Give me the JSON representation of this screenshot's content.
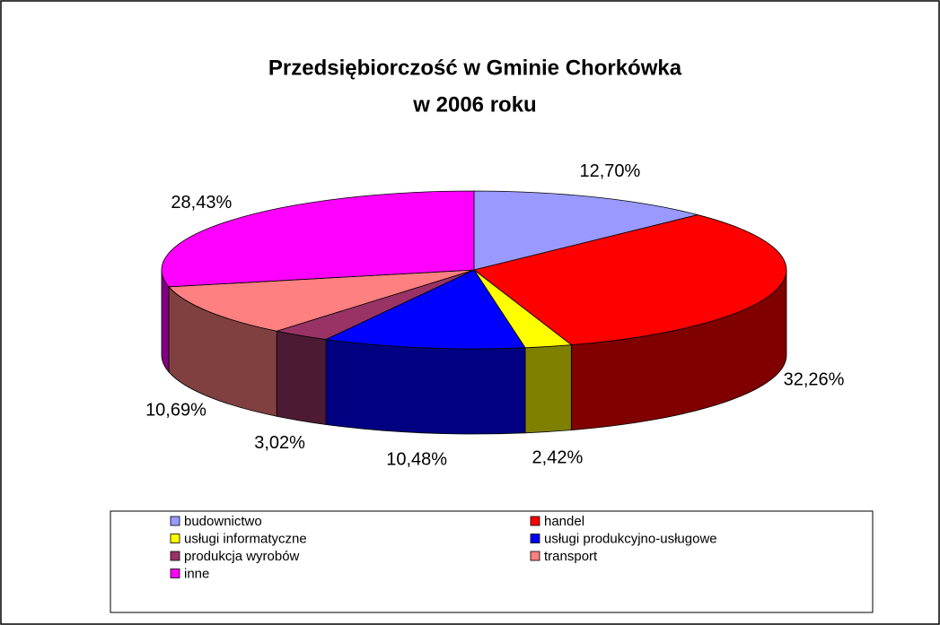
{
  "chart_data": {
    "type": "pie3d",
    "title": [
      "Przedsiębiorczość w Gminie Chorkówka",
      "w 2006 roku"
    ],
    "categories": [
      "budownictwo",
      "handel",
      "usługi informatyczne",
      "usługi produkcyjno-usługowe",
      "produkcja wyrobów",
      "transport",
      "inne"
    ],
    "values": [
      12.7,
      32.26,
      2.42,
      10.48,
      3.02,
      10.69,
      28.43
    ],
    "value_labels": [
      "12,70%",
      "32,26%",
      "2,42%",
      "10,48%",
      "3,02%",
      "10,69%",
      "28,43%"
    ],
    "colors": [
      "#9999ff",
      "#ff0000",
      "#ffff00",
      "#0000ff",
      "#993366",
      "#ff8080",
      "#ff00ff"
    ],
    "legend": "bottom"
  }
}
